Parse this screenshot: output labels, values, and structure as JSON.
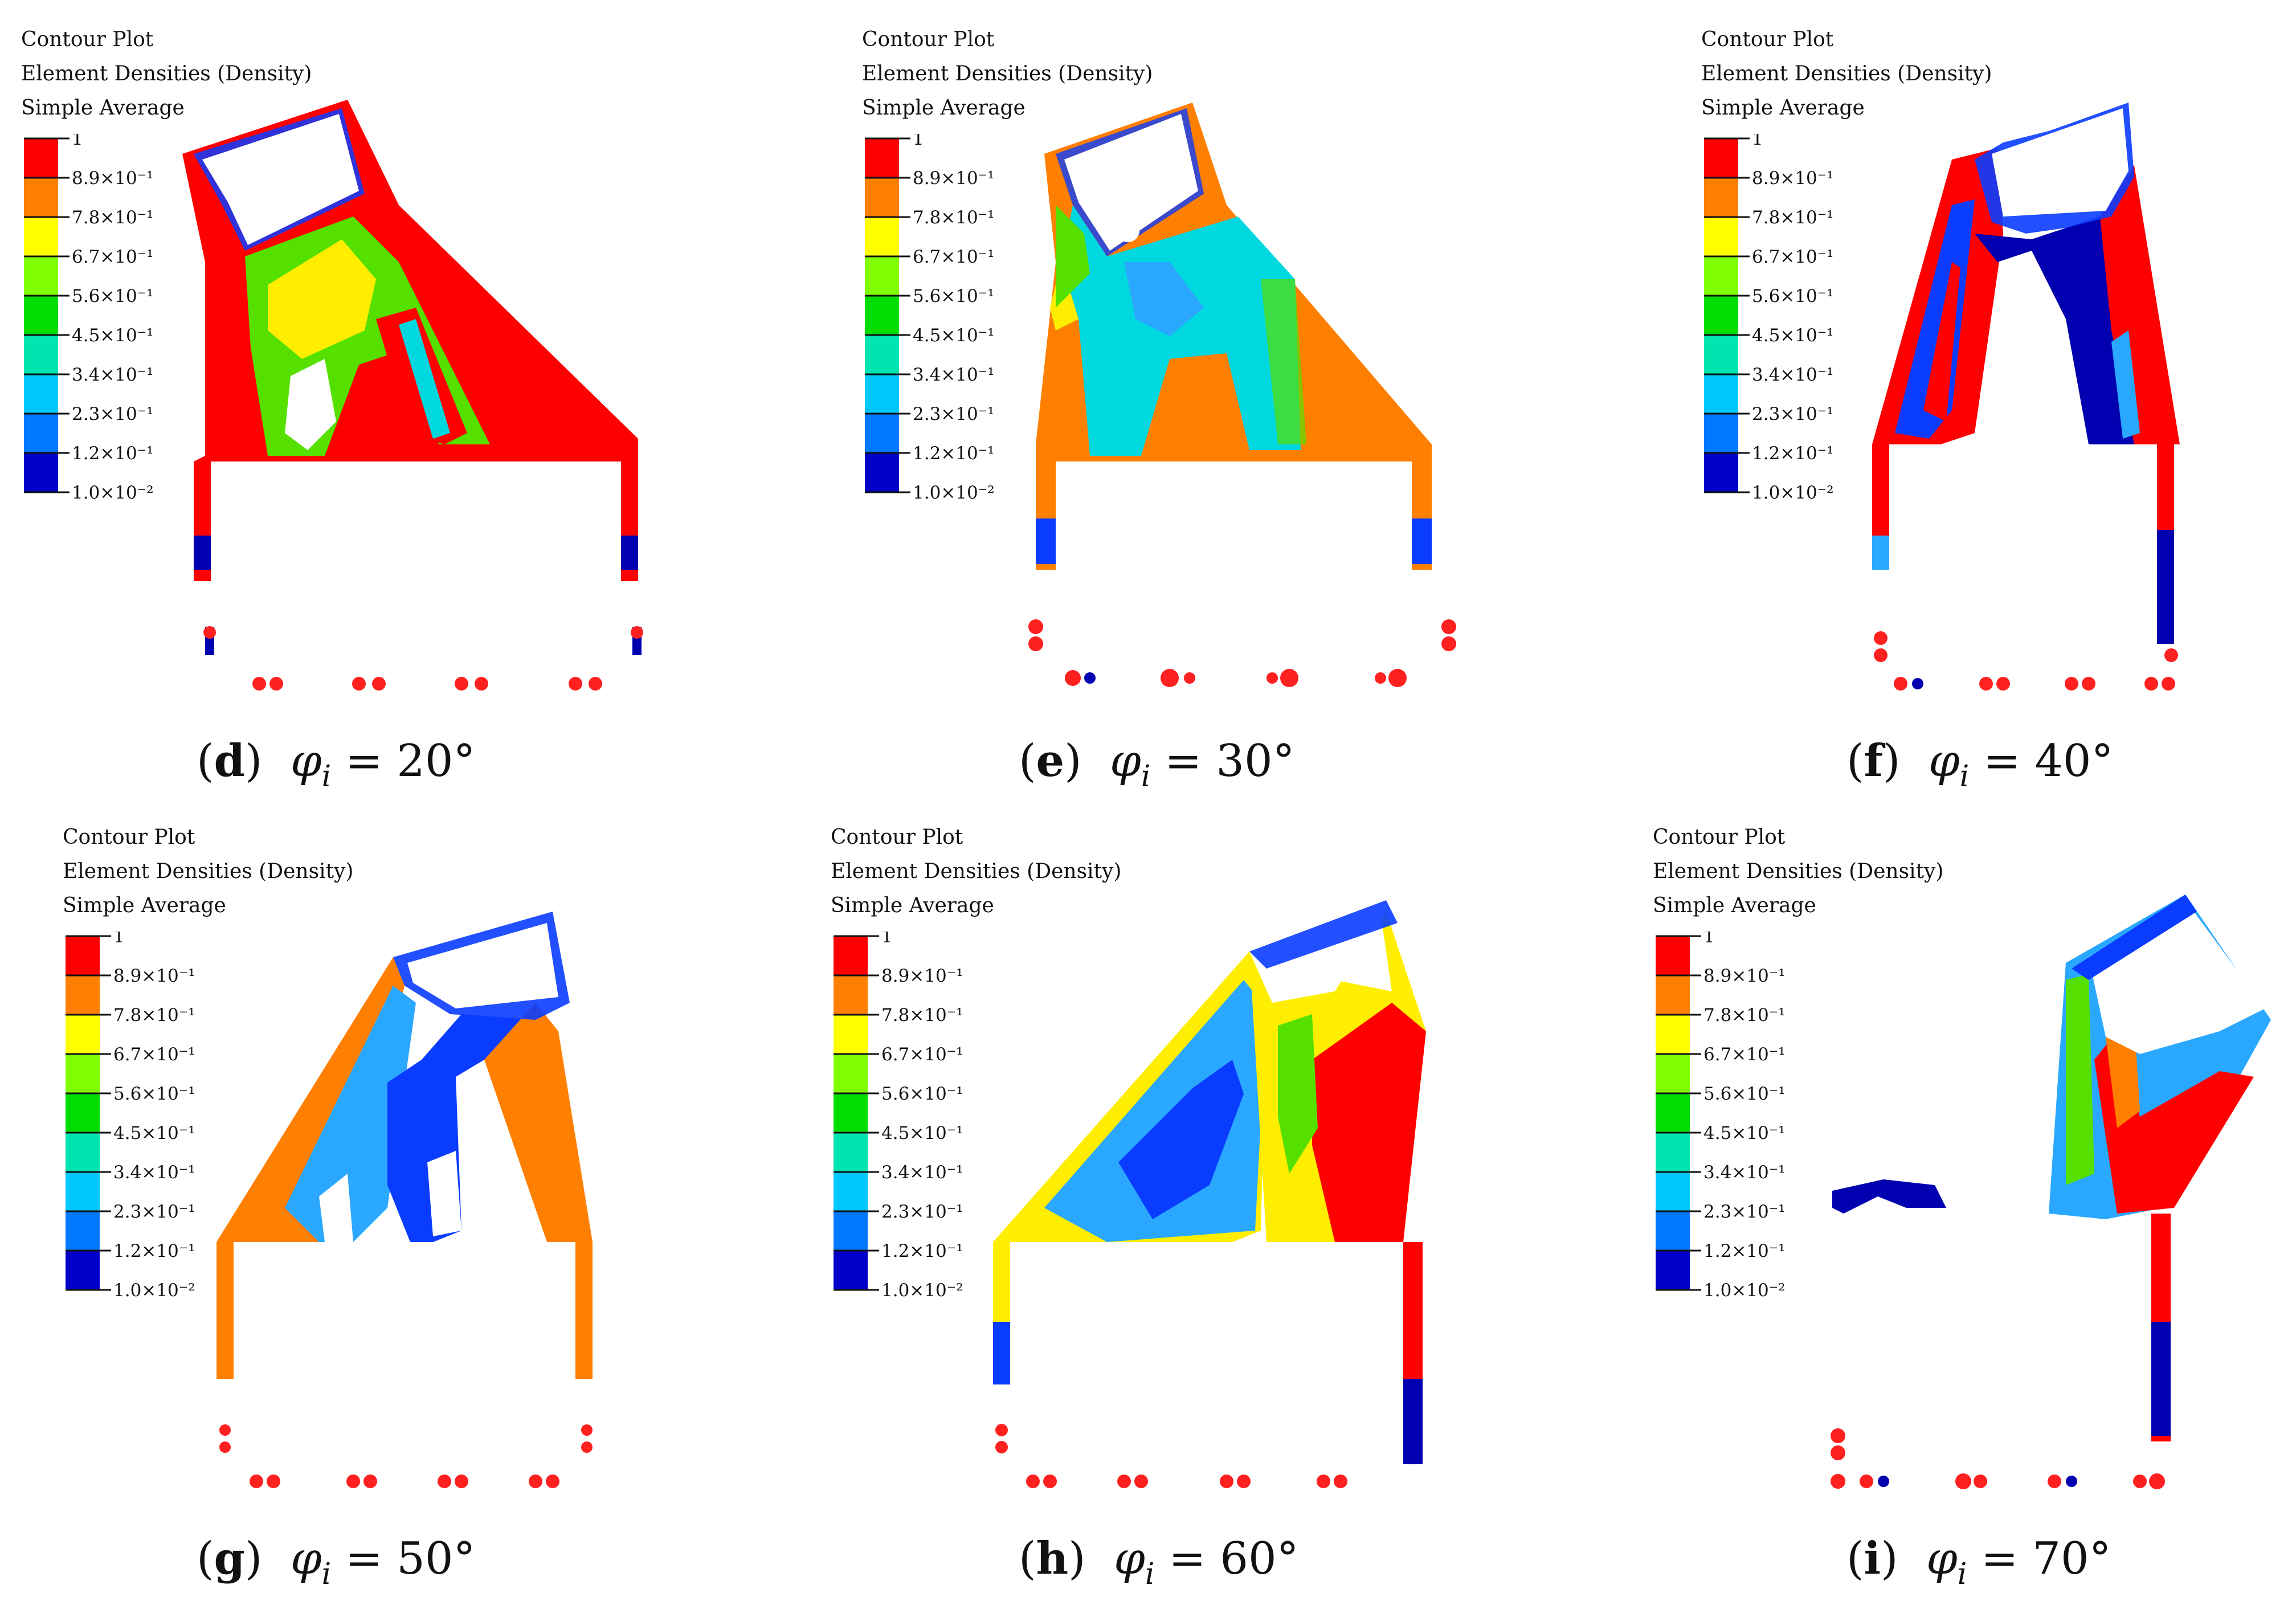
{
  "header": {
    "line1": "Contour Plot",
    "line2": "Element Densities (Density)",
    "line3": "Simple Average"
  },
  "legend": {
    "labels": [
      "1",
      "8.9×10⁻¹",
      "7.8×10⁻¹",
      "6.7×10⁻¹",
      "5.6×10⁻¹",
      "4.5×10⁻¹",
      "3.4×10⁻¹",
      "2.3×10⁻¹",
      "1.2×10⁻¹",
      "1.0×10⁻²"
    ],
    "colors": [
      "#ff0000",
      "#ff7f00",
      "#ffff00",
      "#7fff00",
      "#00dd00",
      "#00e5b0",
      "#00c8ff",
      "#0078ff",
      "#0000c8"
    ]
  },
  "panels": [
    {
      "id": "d",
      "letter": "d",
      "sym": "φ",
      "sub": "i",
      "rest": " = 20°"
    },
    {
      "id": "e",
      "letter": "e",
      "sym": "φ",
      "sub": "i",
      "rest": " = 30°"
    },
    {
      "id": "f",
      "letter": "f",
      "sym": "φ",
      "sub": "i",
      "rest": " = 40°"
    },
    {
      "id": "g",
      "letter": "g",
      "sym": "φ",
      "sub": "i",
      "rest": " = 50°"
    },
    {
      "id": "h",
      "letter": "h",
      "sym": "φ",
      "sub": "i",
      "rest": " = 60°"
    },
    {
      "id": "i",
      "letter": "i",
      "sym": "φ",
      "sub": "i",
      "rest": " = 70°"
    }
  ],
  "colors": {
    "red": "#ff0000",
    "orange": "#ff7f00",
    "yellow": "#ffee00",
    "green": "#55e000",
    "cyan": "#00d8e0",
    "lightblue": "#2aa8ff",
    "blue": "#0a3cff",
    "navy": "#0000b0",
    "node": "#ff2020"
  }
}
